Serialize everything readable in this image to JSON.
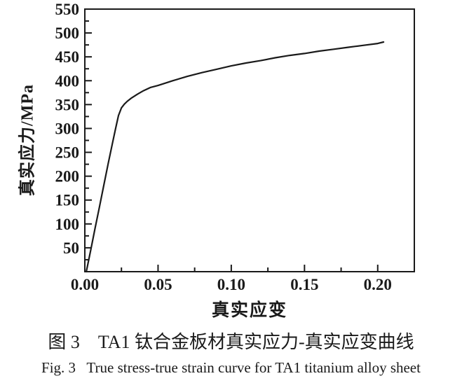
{
  "figure": {
    "caption_zh": "图 3　TA1 钛合金板材真实应力-真实应变曲线",
    "caption_en": "Fig. 3   True stress-true strain curve for TA1 titanium alloy sheet"
  },
  "chart_data": {
    "type": "line",
    "title": "",
    "xlabel": "真实应变",
    "ylabel": "真实应力/MPa",
    "xlim": [
      0,
      0.225
    ],
    "ylim": [
      0,
      550
    ],
    "grid": false,
    "legend_position": "none",
    "line_color": "#1a1a1a",
    "axis_color": "#1a1a1a",
    "x_major_ticks": [
      0,
      0.05,
      0.1,
      0.15,
      0.2
    ],
    "x_tick_labels": [
      "0.00",
      "0.05",
      "0.10",
      "0.15",
      "0.20"
    ],
    "x_minor_ticks": [
      0.025,
      0.075,
      0.125,
      0.175
    ],
    "y_major_ticks": [
      0,
      50,
      100,
      150,
      200,
      250,
      300,
      350,
      400,
      450,
      500,
      550
    ],
    "y_tick_labels": [
      "",
      "50",
      "100",
      "150",
      "200",
      "250",
      "300",
      "350",
      "400",
      "450",
      "500",
      "550"
    ],
    "y_minor_ticks": [
      25,
      75,
      125,
      175,
      225,
      275,
      325,
      375,
      425,
      475,
      525
    ],
    "series": [
      {
        "name": "TA1 true stress-true strain curve",
        "x": [
          0.001,
          0.004,
          0.007,
          0.01,
          0.013,
          0.016,
          0.019,
          0.021,
          0.023,
          0.025,
          0.027,
          0.029,
          0.032,
          0.036,
          0.04,
          0.045,
          0.05,
          0.055,
          0.06,
          0.07,
          0.08,
          0.09,
          0.1,
          0.11,
          0.12,
          0.13,
          0.14,
          0.15,
          0.16,
          0.17,
          0.18,
          0.19,
          0.2,
          0.204
        ],
        "y": [
          0,
          45,
          91,
          136,
          182,
          227,
          271,
          300,
          327,
          343,
          351,
          357,
          364,
          372,
          379,
          386,
          390,
          395,
          400,
          409,
          417,
          424,
          431,
          437,
          442,
          448,
          453,
          457,
          462,
          466,
          470,
          474,
          478,
          481
        ]
      }
    ]
  }
}
